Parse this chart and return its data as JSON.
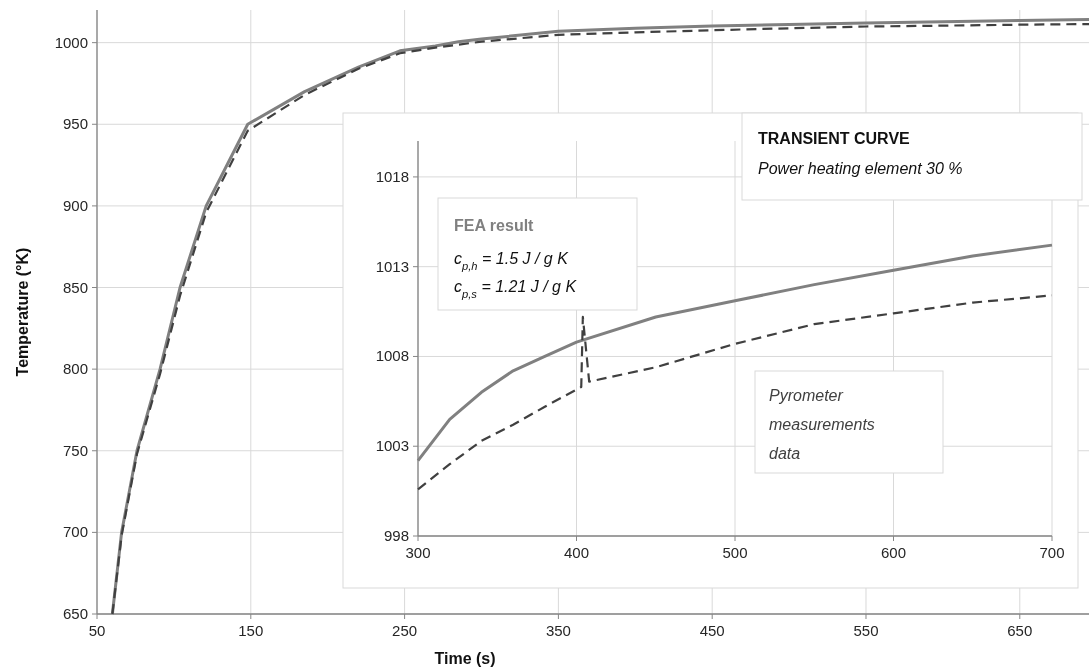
{
  "chart_data": [
    {
      "type": "line",
      "xlabel": "Time (s)",
      "ylabel": "Temperature (°K)",
      "xlim": [
        50,
        695
      ],
      "ylim": [
        650,
        1020
      ],
      "xticks": [
        50,
        150,
        250,
        350,
        450,
        550,
        650
      ],
      "yticks": [
        650,
        700,
        750,
        800,
        850,
        900,
        950,
        1000
      ],
      "grid": true,
      "annotations": [
        "TRANSIENT CURVE",
        "Power heating element  30 %"
      ],
      "series": [
        {
          "color": "#808080",
          "line_style": "solid",
          "x": [
            60,
            66,
            76,
            91,
            104,
            121,
            148,
            185,
            220,
            247,
            270,
            285,
            300,
            350,
            400,
            450,
            500,
            550,
            600,
            650,
            695
          ],
          "values": [
            650,
            700,
            750,
            800,
            850,
            900,
            950,
            970,
            985,
            995,
            998,
            1000.5,
            1002.2,
            1007,
            1008.8,
            1010.2,
            1011.1,
            1012,
            1012.8,
            1013.6,
            1014.2
          ]
        },
        {
          "color": "#404040",
          "line_style": "dashed",
          "x": [
            60,
            66,
            76,
            91,
            104,
            121,
            148,
            185,
            220,
            247,
            270,
            300,
            350,
            400,
            450,
            500,
            550,
            600,
            650,
            695
          ],
          "values": [
            650,
            698,
            748,
            797,
            845,
            896,
            946,
            968,
            984,
            993.5,
            997,
            1000.6,
            1004.8,
            1006.3,
            1007.6,
            1008.8,
            1009.9,
            1010.4,
            1011,
            1011.4
          ]
        }
      ]
    },
    {
      "type": "line",
      "xlim": [
        300,
        700
      ],
      "ylim": [
        998,
        1020
      ],
      "xticks": [
        300,
        400,
        500,
        600,
        700
      ],
      "yticks": [
        998,
        1003,
        1008,
        1013,
        1018
      ],
      "grid": true,
      "annotations": [
        "c$_{p,h}$ = 1.5 J / g K",
        "c$_{p,s}$ = 1.21 J / g K"
      ],
      "series": [
        {
          "name": "FEA result",
          "color": "#808080",
          "line_style": "solid",
          "x": [
            300,
            320,
            340,
            360,
            380,
            400,
            450,
            500,
            550,
            600,
            650,
            700
          ],
          "values": [
            1002.2,
            1004.5,
            1006,
            1007.2,
            1008,
            1008.8,
            1010.2,
            1011.1,
            1012,
            1012.8,
            1013.6,
            1014.2
          ]
        },
        {
          "name": "Pyrometer measurements data",
          "color": "#404040",
          "line_style": "dashed",
          "x": [
            300,
            320,
            340,
            360,
            380,
            403,
            404,
            408,
            450,
            500,
            550,
            600,
            650,
            700
          ],
          "values": [
            1000.6,
            1002,
            1003.3,
            1004.2,
            1005.2,
            1006.3,
            1010.2,
            1006.6,
            1007.4,
            1008.7,
            1009.8,
            1010.4,
            1011,
            1011.4
          ]
        }
      ]
    }
  ]
}
